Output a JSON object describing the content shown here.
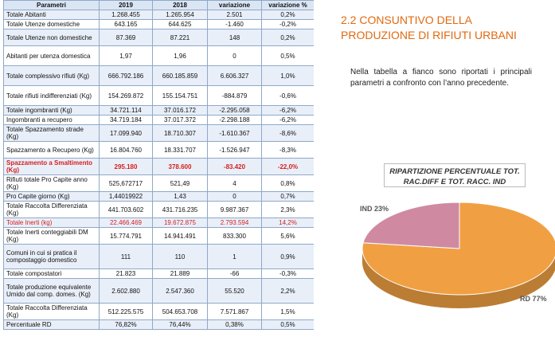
{
  "table": {
    "headers": [
      "Parametri",
      "2019",
      "2018",
      "variazione",
      "variazione %"
    ],
    "rows": [
      {
        "param": "Totale Abitanti",
        "y2019": "1.268.455",
        "y2018": "1.265.954",
        "var": "2.501",
        "varpct": "0,2%",
        "style": "",
        "h": 11
      },
      {
        "param": "Totale Utenze domestiche",
        "y2019": "643.165",
        "y2018": "644.625",
        "var": "-1.460",
        "varpct": "-0,2%",
        "style": "",
        "h": 11
      },
      {
        "param": "Totale Utenze non domestiche",
        "y2019": "87.369",
        "y2018": "87.221",
        "var": "148",
        "varpct": "0,2%",
        "style": "",
        "h": 21
      },
      {
        "param": "Abitanti per utenza domestica",
        "y2019": "1,97",
        "y2018": "1,96",
        "var": "0",
        "varpct": "0,5%",
        "style": "",
        "h": 25
      },
      {
        "param": "Totale complessivo rifiuti (Kg)",
        "y2019": "666.792.186",
        "y2018": "660.185.859",
        "var": "6.606.327",
        "varpct": "1,0%",
        "style": "",
        "h": 25
      },
      {
        "param": "Totale rifiuti indifferenziati (Kg)",
        "y2019": "154.269.872",
        "y2018": "155.154.751",
        "var": "-884.879",
        "varpct": "-0,6%",
        "style": "",
        "h": 25
      },
      {
        "param": "Totale ingombranti (Kg)",
        "y2019": "34.721.114",
        "y2018": "37.016.172",
        "var": "-2.295.058",
        "varpct": "-6,2%",
        "style": "",
        "h": 11
      },
      {
        "param": "Ingombranti a recupero",
        "y2019": "34.719.184",
        "y2018": "37.017.372",
        "var": "-2.298.188",
        "varpct": "-6,2%",
        "style": "",
        "h": 11
      },
      {
        "param": "Totale Spazzamento strade (Kg)",
        "y2019": "17.099.940",
        "y2018": "18.710.307",
        "var": "-1.610.367",
        "varpct": "-8,6%",
        "style": "",
        "h": 21
      },
      {
        "param": "Spazzamento a Recupero (Kg)",
        "y2019": "16.804.760",
        "y2018": "18.331.707",
        "var": "-1.526.947",
        "varpct": "-8,3%",
        "style": "",
        "h": 21
      },
      {
        "param": "Spazzamento a Smaltimento (Kg)",
        "y2019": "295.180",
        "y2018": "378.600",
        "var": "-83.420",
        "varpct": "-22,0%",
        "style": "red-bold",
        "h": 21
      },
      {
        "param": "Rifiuti totale Pro Capite anno (Kg)",
        "y2019": "525,672717",
        "y2018": "521,49",
        "var": "4",
        "varpct": "0,8%",
        "style": "",
        "h": 21
      },
      {
        "param": "Pro Capite giorno (Kg)",
        "y2019": "1,44019922",
        "y2018": "1,43",
        "var": "0",
        "varpct": "0,7%",
        "style": "",
        "h": 11
      },
      {
        "param": "Totale Raccolta Differenziata (Kg)",
        "y2019": "441.703.602",
        "y2018": "431.716.235",
        "var": "9.987.367",
        "varpct": "2,3%",
        "style": "",
        "h": 21
      },
      {
        "param": "Totale Inerti (kg)",
        "y2019": "22.466.469",
        "y2018": "19.672.875",
        "var": "2.793.594",
        "varpct": "14,2%",
        "style": "red",
        "h": 11
      },
      {
        "param": "Totale Inerti conteggiabili DM (Kg)",
        "y2019": "15.774.791",
        "y2018": "14.941.491",
        "var": "833.300",
        "varpct": "5,6%",
        "style": "",
        "h": 21
      },
      {
        "param": "Comuni in cui si pratica il compostaggio domestico",
        "y2019": "111",
        "y2018": "110",
        "var": "1",
        "varpct": "0,9%",
        "style": "",
        "h": 31
      },
      {
        "param": "Totale compostatori",
        "y2019": "21.823",
        "y2018": "21.889",
        "var": "-66",
        "varpct": "-0,3%",
        "style": "",
        "h": 11
      },
      {
        "param": "Totale produzione equivalente Umido dal comp. domes. (Kg)",
        "y2019": "2.602.880",
        "y2018": "2.547.360",
        "var": "55.520",
        "varpct": "2,2%",
        "style": "",
        "h": 31
      },
      {
        "param": "Totale Raccolta Differenziata (Kg)",
        "y2019": "512.225.575",
        "y2018": "504.653.708",
        "var": "7.571.867",
        "varpct": "1,5%",
        "style": "",
        "h": 21
      },
      {
        "param": "Percentuale RD",
        "y2019": "76,82%",
        "y2018": "76,44%",
        "var": "0,38%",
        "varpct": "0,5%",
        "style": "",
        "h": 11
      }
    ]
  },
  "section": {
    "heading": "2.2  CONSUNTIVO DELLA PRODUZIONE DI RIFIUTI URBANI",
    "description": "Nella tabella a fianco sono riportati i principali parametri a confronto con l’anno precedente."
  },
  "chart_data": {
    "type": "pie",
    "title_line1": "RIPARTIZIONE PERCENTUALE TOT.",
    "title_line2": "RAC.DIFF E TOT. RACC. IND",
    "slices": [
      {
        "label": "RD 77%",
        "value": 77,
        "color": "#f0a043"
      },
      {
        "label": "IND 23%",
        "value": 23,
        "color": "#cf8aa2"
      }
    ]
  }
}
